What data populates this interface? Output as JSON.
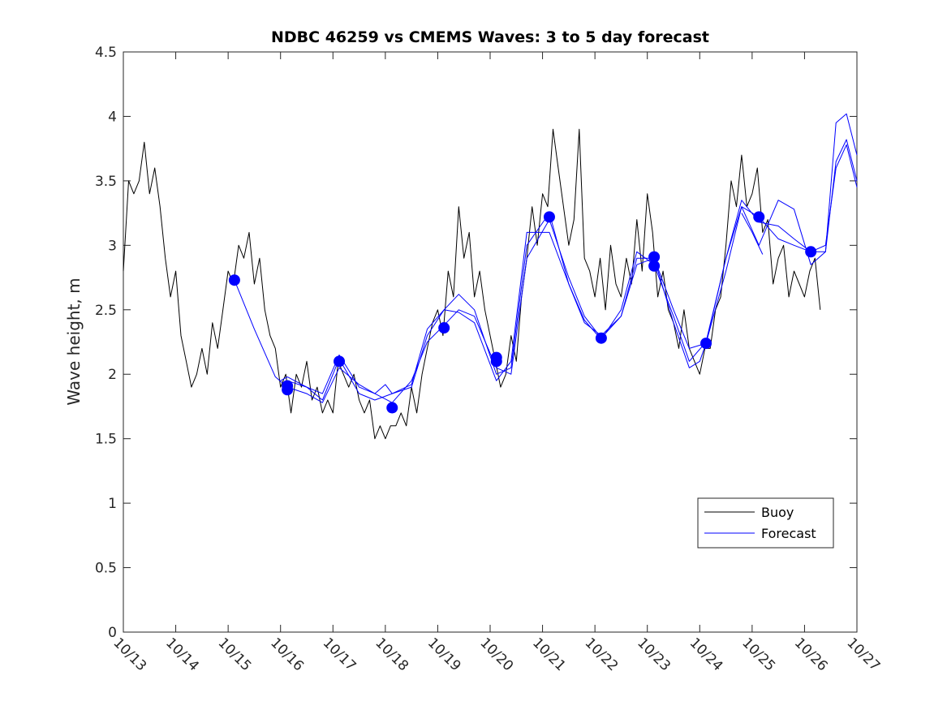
{
  "chart_data": {
    "type": "line",
    "title": "NDBC 46259 vs CMEMS Waves: 3 to 5 day forecast",
    "xlabel": "",
    "ylabel": "Wave height, m",
    "xlim_days": [
      0,
      14
    ],
    "ylim": [
      0,
      4.5
    ],
    "x_tick_labels": [
      "10/13",
      "10/14",
      "10/15",
      "10/16",
      "10/17",
      "10/18",
      "10/19",
      "10/20",
      "10/21",
      "10/22",
      "10/23",
      "10/24",
      "10/25",
      "10/26",
      "10/27"
    ],
    "y_ticks": [
      0,
      0.5,
      1,
      1.5,
      2,
      2.5,
      3,
      3.5,
      4,
      4.5
    ],
    "y_tick_labels": [
      "0",
      "0.5",
      "1",
      "1.5",
      "2",
      "2.5",
      "3",
      "3.5",
      "4",
      "4.5"
    ],
    "legend": {
      "placement": "lower-right",
      "entries": [
        "Buoy",
        "Forecast"
      ]
    },
    "colors": {
      "buoy": "#000000",
      "forecast": "#0000ff"
    },
    "series": [
      {
        "name": "Buoy",
        "x_start": 0,
        "x_step": 0.1,
        "values": [
          2.8,
          3.5,
          3.4,
          3.5,
          3.8,
          3.4,
          3.6,
          3.3,
          2.9,
          2.6,
          2.8,
          2.3,
          2.1,
          1.9,
          2.0,
          2.2,
          2.0,
          2.4,
          2.2,
          2.5,
          2.8,
          2.7,
          3.0,
          2.9,
          3.1,
          2.7,
          2.9,
          2.5,
          2.3,
          2.2,
          1.9,
          2.0,
          1.7,
          2.0,
          1.9,
          2.1,
          1.8,
          1.9,
          1.7,
          1.8,
          1.7,
          2.1,
          2.0,
          1.9,
          2.0,
          1.8,
          1.7,
          1.8,
          1.5,
          1.6,
          1.5,
          1.6,
          1.6,
          1.7,
          1.6,
          1.9,
          1.7,
          2.0,
          2.2,
          2.4,
          2.5,
          2.3,
          2.8,
          2.6,
          3.3,
          2.9,
          3.1,
          2.6,
          2.8,
          2.5,
          2.3,
          2.1,
          1.9,
          2.0,
          2.3,
          2.1,
          2.6,
          2.9,
          3.3,
          3.0,
          3.4,
          3.3,
          3.9,
          3.6,
          3.3,
          3.0,
          3.2,
          3.9,
          2.9,
          2.8,
          2.6,
          2.9,
          2.5,
          3.0,
          2.7,
          2.6,
          2.9,
          2.7,
          3.2,
          2.8,
          3.4,
          3.1,
          2.6,
          2.8,
          2.5,
          2.4,
          2.2,
          2.5,
          2.2,
          2.1,
          2.0,
          2.2,
          2.2,
          2.5,
          2.6,
          3.0,
          3.5,
          3.3,
          3.7,
          3.3,
          3.4,
          3.6,
          3.1,
          3.2,
          2.7,
          2.9,
          3.0,
          2.6,
          2.8,
          2.7,
          2.6,
          2.8,
          2.9,
          2.5
        ]
      },
      {
        "name": "Forecast",
        "x": [
          2.12,
          2.5,
          2.9,
          3.13,
          3.5,
          3.8,
          4.12,
          4.5,
          4.8,
          5.13,
          5.5,
          5.8,
          6.12,
          6.4,
          6.7,
          7.12,
          7.4,
          7.7,
          8.13,
          8.5,
          8.8,
          9.12,
          9.5,
          9.8,
          10.13,
          10.5,
          10.8,
          11.12,
          11.5,
          11.8,
          12.13,
          12.5,
          12.8,
          13.12,
          13.4,
          13.6,
          13.8,
          14.0
        ],
        "values": [
          2.73,
          2.35,
          1.98,
          1.9,
          1.85,
          1.78,
          2.05,
          1.92,
          1.85,
          1.78,
          1.95,
          2.25,
          2.38,
          2.5,
          2.45,
          2.05,
          2.0,
          2.9,
          3.2,
          2.75,
          2.45,
          2.28,
          2.45,
          2.85,
          2.9,
          2.5,
          2.2,
          2.24,
          2.8,
          3.3,
          3.22,
          3.05,
          3.0,
          2.95,
          3.0,
          3.6,
          3.78,
          3.45
        ]
      },
      {
        "name": "Forecast",
        "x": [
          3.0,
          3.13,
          3.5,
          3.8,
          4.12,
          4.5,
          4.8,
          5.13,
          5.5,
          5.8,
          6.12,
          6.4,
          6.7,
          7.12,
          7.4,
          7.7,
          8.13,
          8.5,
          8.8,
          9.12,
          9.5,
          9.8,
          10.13,
          10.5,
          10.8,
          11.12,
          11.5,
          11.8,
          12.13,
          12.5,
          12.8,
          13.12,
          13.4,
          13.6,
          13.8,
          14.0
        ],
        "values": [
          1.95,
          1.98,
          1.9,
          1.8,
          2.12,
          1.85,
          1.8,
          1.85,
          1.9,
          2.3,
          2.5,
          2.62,
          2.5,
          2.0,
          2.05,
          3.0,
          3.25,
          2.7,
          2.42,
          2.27,
          2.5,
          2.95,
          2.85,
          2.45,
          2.1,
          2.25,
          2.9,
          3.35,
          3.18,
          3.15,
          3.05,
          2.95,
          2.95,
          3.65,
          3.82,
          3.5
        ]
      },
      {
        "name": "Forecast",
        "x": [
          3.13,
          3.5,
          3.8,
          4.12,
          4.5,
          4.8,
          5.0,
          5.13,
          5.5,
          5.8,
          6.12,
          6.4,
          6.7,
          7.12,
          7.4,
          7.7,
          8.13,
          8.5,
          8.8,
          9.12,
          9.5,
          9.8,
          10.13,
          10.5,
          10.8,
          11.0,
          11.12,
          11.5,
          11.8,
          12.13,
          12.5,
          12.8,
          13.12,
          13.4,
          13.6,
          13.8,
          14.0
        ],
        "values": [
          1.95,
          1.9,
          1.85,
          2.15,
          1.9,
          1.85,
          1.92,
          1.85,
          1.92,
          2.35,
          2.5,
          2.48,
          2.4,
          1.95,
          2.1,
          3.1,
          3.1,
          2.7,
          2.4,
          2.3,
          2.45,
          2.9,
          2.9,
          2.4,
          2.05,
          2.1,
          2.24,
          2.9,
          3.3,
          3.0,
          3.35,
          3.28,
          2.85,
          2.95,
          3.95,
          4.02,
          3.7
        ]
      },
      {
        "name": "Forecast",
        "x": [
          11.8,
          12.0,
          12.2
        ],
        "values": [
          3.25,
          3.1,
          2.93
        ]
      }
    ],
    "markers": {
      "name": "Forecast points",
      "x": [
        2.12,
        3.13,
        3.13,
        4.12,
        5.13,
        6.12,
        7.12,
        7.12,
        8.13,
        9.12,
        10.13,
        10.13,
        11.12,
        12.13,
        13.12
      ],
      "values": [
        2.73,
        1.91,
        1.88,
        2.1,
        1.74,
        2.36,
        2.13,
        2.1,
        3.22,
        2.28,
        2.91,
        2.84,
        2.24,
        3.22,
        2.95
      ]
    }
  }
}
